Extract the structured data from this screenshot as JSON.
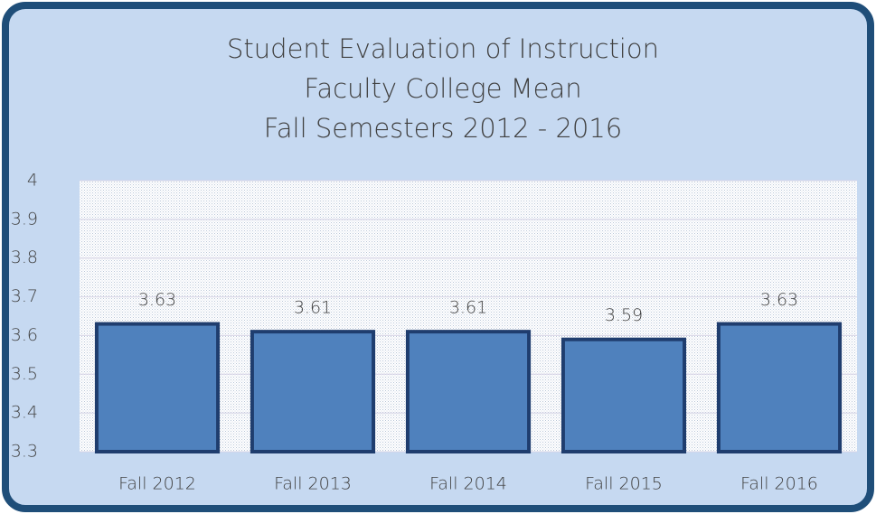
{
  "chart_data": {
    "type": "bar",
    "title": [
      "Student Evaluation of Instruction",
      "Faculty College Mean",
      "Fall Semesters 2012 - 2016"
    ],
    "categories": [
      "Fall 2012",
      "Fall 2013",
      "Fall 2014",
      "Fall 2015",
      "Fall 2016"
    ],
    "values": [
      3.63,
      3.61,
      3.61,
      3.59,
      3.63
    ],
    "color": "#4f81bd",
    "ylim": [
      3.3,
      4
    ],
    "yticks": [
      3.3,
      3.4,
      3.5,
      3.6,
      3.7,
      3.8,
      3.9,
      4
    ],
    "grid": true
  }
}
